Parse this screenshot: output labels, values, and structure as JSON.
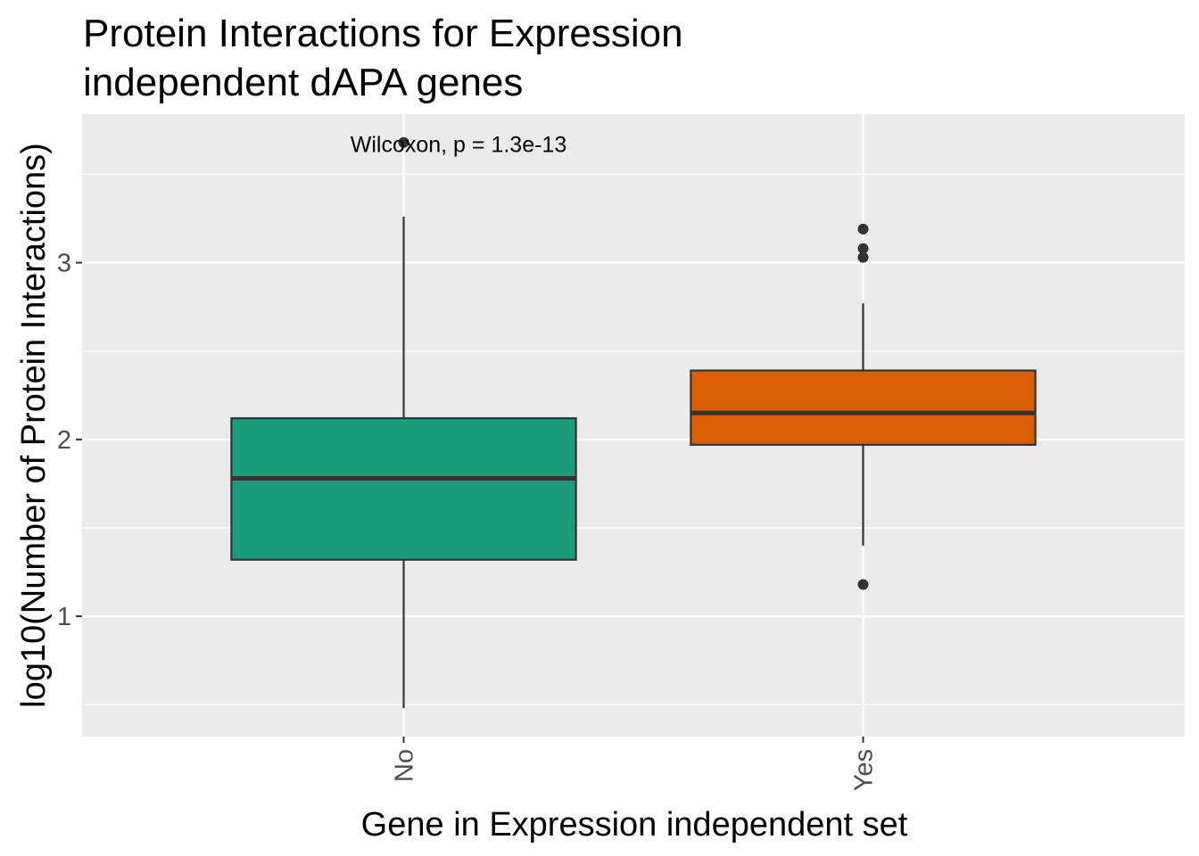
{
  "chart_data": {
    "type": "boxplot",
    "title_lines": [
      "Protein Interactions for Expression",
      "independent dAPA genes"
    ],
    "xlabel": "Gene in Expression independent set",
    "ylabel": "log10(Number of Protein Interactions)",
    "ylim": [
      0.32,
      3.84
    ],
    "yticks": [
      {
        "value": 1,
        "label": "1"
      },
      {
        "value": 2,
        "label": "2"
      },
      {
        "value": 3,
        "label": "3"
      }
    ],
    "minor_yticks": [
      0.5,
      1.5,
      2.5,
      3.5
    ],
    "grid": true,
    "categories": [
      "No",
      "Yes"
    ],
    "boxes": [
      {
        "category": "No",
        "fill": "#1B9E77",
        "q1": 1.32,
        "median": 1.78,
        "q3": 2.12,
        "whisker_low": 0.48,
        "whisker_high": 3.26,
        "outliers": [
          3.68
        ]
      },
      {
        "category": "Yes",
        "fill": "#D95F02",
        "q1": 1.97,
        "median": 2.15,
        "q3": 2.39,
        "whisker_low": 1.4,
        "whisker_high": 2.77,
        "outliers": [
          3.19,
          3.08,
          3.03,
          1.18
        ]
      }
    ],
    "annotation": {
      "text": "Wilcoxon, p = 1.3e-13",
      "y": 3.67
    },
    "colors": {
      "panel_background": "#EBEBEB",
      "grid": "#FFFFFF",
      "box_outline": "#333333",
      "text": "#000000",
      "tick_label": "#4D4D4D"
    }
  }
}
